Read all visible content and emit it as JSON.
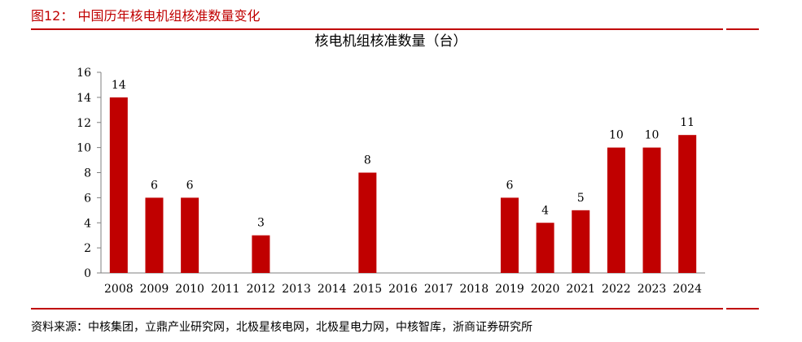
{
  "figure_title": "图12：  中国历年核电机组核准数量变化",
  "source": "资料来源：中核集团，立鼎产业研究网，北极星核电网，北极星电力网，中核智库，浙商证券研究所",
  "colors": {
    "accent": "#C00000",
    "bar": "#C00000"
  },
  "chart_data": {
    "type": "bar",
    "title": "核电机组核准数量（台）",
    "xlabel": "",
    "ylabel": "",
    "categories": [
      "2008",
      "2009",
      "2010",
      "2011",
      "2012",
      "2013",
      "2014",
      "2015",
      "2016",
      "2017",
      "2018",
      "2019",
      "2020",
      "2021",
      "2022",
      "2023",
      "2024"
    ],
    "values": [
      14,
      6,
      6,
      0,
      3,
      0,
      0,
      8,
      0,
      0,
      0,
      6,
      4,
      5,
      10,
      10,
      11
    ],
    "data_labels": [
      "14",
      "6",
      "6",
      "",
      "3",
      "",
      "",
      "8",
      "",
      "",
      "",
      "6",
      "4",
      "5",
      "10",
      "10",
      "11"
    ],
    "yticks": [
      0,
      2,
      4,
      6,
      8,
      10,
      12,
      14,
      16
    ],
    "ylim": [
      0,
      16
    ],
    "grid": false,
    "legend": "none"
  }
}
